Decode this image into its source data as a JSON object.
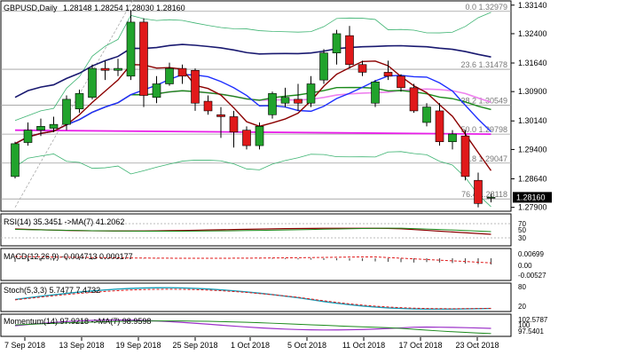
{
  "header": {
    "symbol": "GBPUSD,Daily",
    "ohlc": "1.28148 1.28254 1.28030 1.28160"
  },
  "price_panel": {
    "y_ticks": [
      "1.33140",
      "1.32400",
      "1.31640",
      "1.30900",
      "1.30140",
      "1.29400",
      "1.28640",
      "1.27900"
    ],
    "current_price": "1.28160",
    "fib_levels": [
      {
        "label": "0.0 1.32979",
        "price": 1.32979
      },
      {
        "label": "23.6 1.31478",
        "price": 1.31478
      },
      {
        "label": "38.2 1.30549",
        "price": 1.30549
      },
      {
        "label": "50.0 1.29798",
        "price": 1.29798
      },
      {
        "label": "61.8 1.29047",
        "price": 1.29047
      },
      {
        "label": "76.4 1.28118",
        "price": 1.28118
      }
    ]
  },
  "rsi_panel": {
    "label": "RSI(14) 35.3451 ->MA(7) 41.2062",
    "y_ticks": [
      "70",
      "50",
      "30"
    ]
  },
  "macd_panel": {
    "label": "MACD(12,26,9) -0.004713 0.000177",
    "y_ticks": [
      "0.00699",
      "0.00",
      "-0.00527"
    ]
  },
  "stoch_panel": {
    "label": "Stoch(5,3,3) 5.7477 7.4732",
    "y_ticks": [
      "80",
      "20"
    ]
  },
  "momentum_panel": {
    "label": "Momentum(14) 97.9218 ->MA(7) 98.9598",
    "y_ticks": [
      "102.5787",
      "100",
      "97.5401"
    ]
  },
  "x_axis": {
    "labels": [
      "7 Sep 2018",
      "13 Sep 2018",
      "19 Sep 2018",
      "25 Sep 2018",
      "1 Oct 2018",
      "5 Oct 2018",
      "11 Oct 2018",
      "17 Oct 2018",
      "23 Oct 2018"
    ]
  },
  "colors": {
    "bull": "#21a32c",
    "bear": "#e0191a",
    "ma_dark_red": "#8b0000",
    "ma_navy": "#191970",
    "ma_blue": "#1e2fff",
    "ma_green": "#1b8a1b",
    "ma_magenta": "#e81ee8",
    "ma_pink": "#ee82ee",
    "bollinger": "#3cb371"
  },
  "chart_data": {
    "type": "candlestick",
    "candles": [
      {
        "o": 1.287,
        "h": 1.296,
        "l": 1.2865,
        "c": 1.2955
      },
      {
        "o": 1.2958,
        "h": 1.301,
        "l": 1.295,
        "c": 1.299
      },
      {
        "o": 1.299,
        "h": 1.302,
        "l": 1.2975,
        "c": 1.3
      },
      {
        "o": 1.2995,
        "h": 1.3025,
        "l": 1.2985,
        "c": 1.3005
      },
      {
        "o": 1.3005,
        "h": 1.308,
        "l": 1.299,
        "c": 1.307
      },
      {
        "o": 1.3045,
        "h": 1.3095,
        "l": 1.3035,
        "c": 1.3085
      },
      {
        "o": 1.3075,
        "h": 1.316,
        "l": 1.307,
        "c": 1.315
      },
      {
        "o": 1.315,
        "h": 1.317,
        "l": 1.312,
        "c": 1.3145
      },
      {
        "o": 1.3145,
        "h": 1.3175,
        "l": 1.313,
        "c": 1.315
      },
      {
        "o": 1.313,
        "h": 1.33,
        "l": 1.312,
        "c": 1.327
      },
      {
        "o": 1.327,
        "h": 1.328,
        "l": 1.305,
        "c": 1.308
      },
      {
        "o": 1.3075,
        "h": 1.313,
        "l": 1.306,
        "c": 1.311
      },
      {
        "o": 1.311,
        "h": 1.3165,
        "l": 1.3105,
        "c": 1.315
      },
      {
        "o": 1.315,
        "h": 1.316,
        "l": 1.311,
        "c": 1.313
      },
      {
        "o": 1.3145,
        "h": 1.315,
        "l": 1.304,
        "c": 1.306
      },
      {
        "o": 1.3065,
        "h": 1.308,
        "l": 1.303,
        "c": 1.304
      },
      {
        "o": 1.303,
        "h": 1.305,
        "l": 1.297,
        "c": 1.3025
      },
      {
        "o": 1.3025,
        "h": 1.304,
        "l": 1.2945,
        "c": 1.2985
      },
      {
        "o": 1.299,
        "h": 1.3,
        "l": 1.294,
        "c": 1.295
      },
      {
        "o": 1.295,
        "h": 1.301,
        "l": 1.294,
        "c": 1.3
      },
      {
        "o": 1.303,
        "h": 1.309,
        "l": 1.302,
        "c": 1.3085
      },
      {
        "o": 1.306,
        "h": 1.31,
        "l": 1.305,
        "c": 1.3075
      },
      {
        "o": 1.307,
        "h": 1.311,
        "l": 1.304,
        "c": 1.306
      },
      {
        "o": 1.306,
        "h": 1.313,
        "l": 1.305,
        "c": 1.311
      },
      {
        "o": 1.312,
        "h": 1.32,
        "l": 1.311,
        "c": 1.319
      },
      {
        "o": 1.319,
        "h": 1.325,
        "l": 1.316,
        "c": 1.324
      },
      {
        "o": 1.3235,
        "h": 1.326,
        "l": 1.315,
        "c": 1.316
      },
      {
        "o": 1.316,
        "h": 1.317,
        "l": 1.313,
        "c": 1.314
      },
      {
        "o": 1.306,
        "h": 1.312,
        "l": 1.305,
        "c": 1.3115
      },
      {
        "o": 1.314,
        "h": 1.317,
        "l": 1.312,
        "c": 1.313
      },
      {
        "o": 1.313,
        "h": 1.3135,
        "l": 1.309,
        "c": 1.31
      },
      {
        "o": 1.31,
        "h": 1.311,
        "l": 1.3035,
        "c": 1.304
      },
      {
        "o": 1.301,
        "h": 1.306,
        "l": 1.3,
        "c": 1.305
      },
      {
        "o": 1.304,
        "h": 1.306,
        "l": 1.295,
        "c": 1.296
      },
      {
        "o": 1.296,
        "h": 1.299,
        "l": 1.294,
        "c": 1.298
      },
      {
        "o": 1.2975,
        "h": 1.299,
        "l": 1.286,
        "c": 1.287
      },
      {
        "o": 1.286,
        "h": 1.288,
        "l": 1.279,
        "c": 1.28
      },
      {
        "o": 1.2815,
        "h": 1.2825,
        "l": 1.2803,
        "c": 1.2816
      }
    ]
  }
}
